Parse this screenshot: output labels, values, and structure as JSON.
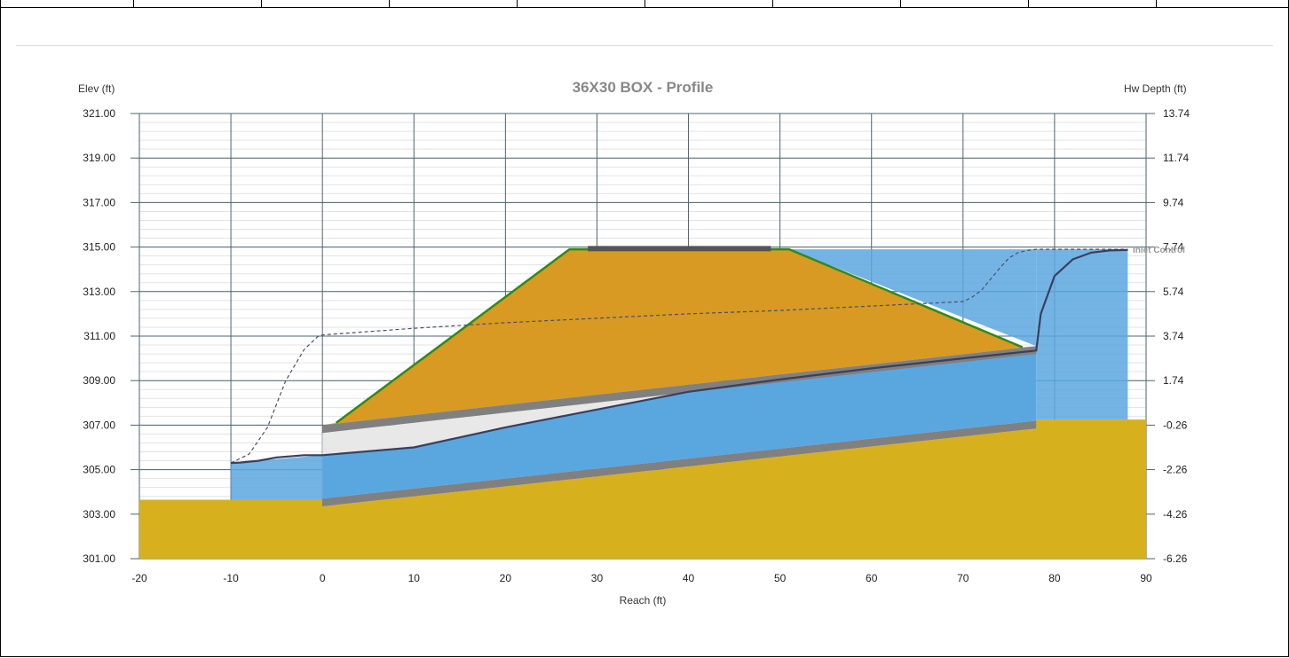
{
  "chart_data": {
    "type": "area",
    "title": "36X30 BOX - Profile",
    "xlabel": "Reach (ft)",
    "ylabel_left": "Elev (ft)",
    "ylabel_right": "Hw Depth (ft)",
    "xlim": [
      -20,
      90
    ],
    "ylim": [
      301,
      321
    ],
    "x_ticks": [
      -20,
      -10,
      0,
      10,
      20,
      30,
      40,
      50,
      60,
      70,
      80,
      90
    ],
    "x_tick_labels": [
      "-20",
      "-10",
      "0",
      "10",
      "20",
      "30",
      "40",
      "50",
      "60",
      "70",
      "80",
      "90"
    ],
    "y_ticks": [
      301,
      303,
      305,
      307,
      309,
      311,
      313,
      315,
      317,
      319,
      321
    ],
    "y_tick_labels": [
      "301.00",
      "303.00",
      "305.00",
      "307.00",
      "309.00",
      "311.00",
      "313.00",
      "315.00",
      "317.00",
      "319.00",
      "321.00"
    ],
    "y2_tick_labels": [
      "-6.26",
      "-4.26",
      "-2.26",
      "-0.26",
      "1.74",
      "3.74",
      "5.74",
      "7.74",
      "9.74",
      "11.74",
      "13.74"
    ],
    "grid": true,
    "annotation": "Inlet Control",
    "colors": {
      "water": "#5aa7e0",
      "soil": "#d7b01e",
      "embankment": "#d89a22",
      "culvert_wall": "#808080",
      "culvert_air": "#e8e8e8",
      "embankment_edge": "#2e8b1a",
      "water_surface": "#3a3f5c",
      "road": "#555555"
    },
    "ground_downstream": {
      "x": [
        -20,
        0
      ],
      "y": [
        303.65,
        303.65
      ]
    },
    "ground_upstream": {
      "x": [
        78,
        90
      ],
      "y": [
        307.25,
        307.25
      ]
    },
    "culvert_invert": {
      "x": [
        0,
        78
      ],
      "y": [
        303.7,
        307.2
      ]
    },
    "culvert_crown": {
      "x": [
        0,
        78
      ],
      "y": [
        306.65,
        310.2
      ]
    },
    "embankment": {
      "x": [
        1.5,
        27,
        51,
        76.5
      ],
      "y": [
        307.1,
        314.9,
        314.9,
        310.5
      ]
    },
    "road_surface": {
      "x": [
        29,
        49
      ],
      "y": [
        314.93,
        314.93
      ]
    },
    "water_surface": {
      "x": [
        -10,
        -9,
        -7,
        -5,
        -2,
        0,
        10,
        20,
        30,
        40,
        50,
        60,
        70,
        78,
        78.5,
        80,
        82,
        84,
        86,
        88
      ],
      "y": [
        305.3,
        305.32,
        305.4,
        305.55,
        305.65,
        305.65,
        306.0,
        306.9,
        307.7,
        308.5,
        309.05,
        309.55,
        310.0,
        310.35,
        312.0,
        313.7,
        314.45,
        314.75,
        314.85,
        314.87
      ]
    },
    "energy_grade_line": {
      "x": [
        -10,
        -8,
        -6,
        -4,
        -2,
        -0.5,
        0,
        10,
        20,
        30,
        40,
        50,
        60,
        70,
        71,
        72,
        73,
        74,
        75,
        76,
        77,
        78,
        80,
        82,
        84,
        86,
        88
      ],
      "y": [
        305.3,
        305.7,
        306.9,
        309.0,
        310.4,
        310.98,
        311.05,
        311.35,
        311.6,
        311.8,
        312.0,
        312.15,
        312.35,
        312.55,
        312.75,
        313.05,
        313.55,
        314.05,
        314.5,
        314.75,
        314.85,
        314.9,
        314.9,
        314.9,
        314.9,
        314.9,
        314.9
      ]
    },
    "upstream_pool": {
      "x": [
        51,
        88
      ],
      "y": [
        314.9,
        314.9
      ]
    },
    "downstream_pool": {
      "x": [
        -10,
        0
      ],
      "y": [
        305.3,
        305.65
      ]
    }
  }
}
